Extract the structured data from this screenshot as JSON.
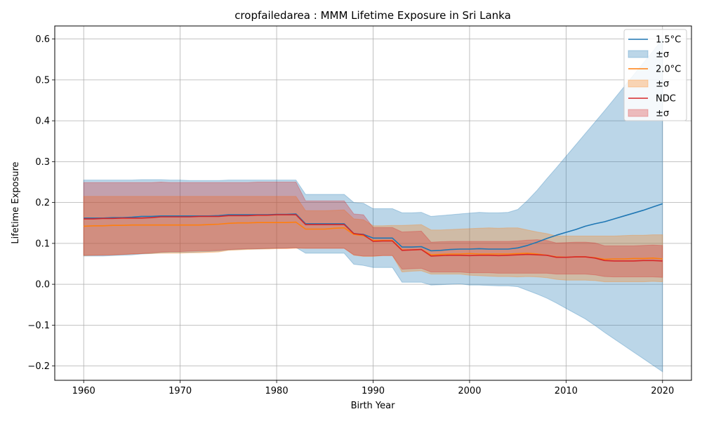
{
  "chart_data": {
    "type": "line",
    "title": "cropfailedarea : MMM Lifetime Exposure in Sri Lanka",
    "xlabel": "Birth Year",
    "ylabel": "Lifetime Exposure",
    "xlim": [
      1957,
      2023
    ],
    "ylim": [
      -0.235,
      0.632
    ],
    "xticks": [
      1960,
      1970,
      1980,
      1990,
      2000,
      2010,
      2020
    ],
    "xtick_labels": [
      "1960",
      "1970",
      "1980",
      "1990",
      "2000",
      "2010",
      "2020"
    ],
    "yticks": [
      -0.2,
      -0.1,
      0.0,
      0.1,
      0.2,
      0.3,
      0.4,
      0.5,
      0.6
    ],
    "ytick_labels": [
      "−0.2",
      "−0.1",
      "0.0",
      "0.1",
      "0.2",
      "0.3",
      "0.4",
      "0.5",
      "0.6"
    ],
    "grid": true,
    "legend_position": "top-right",
    "x": [
      1960,
      1961,
      1962,
      1963,
      1964,
      1965,
      1966,
      1967,
      1968,
      1969,
      1970,
      1971,
      1972,
      1973,
      1974,
      1975,
      1976,
      1977,
      1978,
      1979,
      1980,
      1981,
      1982,
      1983,
      1984,
      1985,
      1986,
      1987,
      1988,
      1989,
      1990,
      1991,
      1992,
      1993,
      1994,
      1995,
      1996,
      1997,
      1998,
      1999,
      2000,
      2001,
      2002,
      2003,
      2004,
      2005,
      2006,
      2007,
      2008,
      2009,
      2010,
      2011,
      2012,
      2013,
      2014,
      2015,
      2016,
      2017,
      2018,
      2019,
      2020
    ],
    "series": [
      {
        "name": "1.5°C",
        "band_label": "±σ",
        "color": "#1f77b4",
        "mean": [
          0.162,
          0.162,
          0.162,
          0.163,
          0.163,
          0.164,
          0.166,
          0.166,
          0.167,
          0.167,
          0.167,
          0.167,
          0.167,
          0.167,
          0.168,
          0.17,
          0.17,
          0.17,
          0.17,
          0.17,
          0.171,
          0.171,
          0.172,
          0.148,
          0.148,
          0.148,
          0.148,
          0.148,
          0.124,
          0.122,
          0.113,
          0.113,
          0.113,
          0.091,
          0.091,
          0.092,
          0.082,
          0.083,
          0.085,
          0.086,
          0.086,
          0.087,
          0.086,
          0.086,
          0.086,
          0.089,
          0.095,
          0.103,
          0.112,
          0.12,
          0.127,
          0.134,
          0.142,
          0.148,
          0.153,
          0.16,
          0.167,
          0.174,
          0.181,
          0.189,
          0.197
        ],
        "upper": [
          0.255,
          0.255,
          0.255,
          0.255,
          0.255,
          0.255,
          0.256,
          0.256,
          0.256,
          0.255,
          0.255,
          0.254,
          0.254,
          0.254,
          0.254,
          0.255,
          0.255,
          0.255,
          0.255,
          0.255,
          0.255,
          0.255,
          0.255,
          0.22,
          0.22,
          0.22,
          0.22,
          0.22,
          0.2,
          0.198,
          0.185,
          0.185,
          0.185,
          0.175,
          0.175,
          0.176,
          0.166,
          0.168,
          0.17,
          0.172,
          0.174,
          0.176,
          0.175,
          0.175,
          0.176,
          0.183,
          0.205,
          0.23,
          0.258,
          0.285,
          0.313,
          0.341,
          0.369,
          0.397,
          0.425,
          0.454,
          0.483,
          0.512,
          0.541,
          0.57,
          0.6
        ],
        "lower": [
          0.069,
          0.069,
          0.069,
          0.07,
          0.071,
          0.072,
          0.074,
          0.075,
          0.077,
          0.078,
          0.078,
          0.078,
          0.079,
          0.08,
          0.081,
          0.084,
          0.085,
          0.086,
          0.086,
          0.087,
          0.088,
          0.089,
          0.09,
          0.076,
          0.076,
          0.076,
          0.076,
          0.076,
          0.049,
          0.046,
          0.041,
          0.041,
          0.041,
          0.005,
          0.005,
          0.005,
          -0.002,
          -0.001,
          0.0,
          0.001,
          -0.002,
          -0.002,
          -0.003,
          -0.004,
          -0.004,
          -0.006,
          -0.015,
          -0.024,
          -0.034,
          -0.046,
          -0.059,
          -0.072,
          -0.085,
          -0.101,
          -0.118,
          -0.134,
          -0.15,
          -0.166,
          -0.182,
          -0.198,
          -0.214
        ]
      },
      {
        "name": "2.0°C",
        "band_label": "±σ",
        "color": "#ff7f0e",
        "mean": [
          0.142,
          0.143,
          0.143,
          0.144,
          0.144,
          0.145,
          0.145,
          0.145,
          0.145,
          0.145,
          0.145,
          0.145,
          0.145,
          0.146,
          0.147,
          0.149,
          0.15,
          0.15,
          0.151,
          0.151,
          0.151,
          0.151,
          0.152,
          0.135,
          0.135,
          0.135,
          0.137,
          0.138,
          0.122,
          0.119,
          0.107,
          0.107,
          0.107,
          0.084,
          0.084,
          0.085,
          0.072,
          0.073,
          0.074,
          0.074,
          0.075,
          0.074,
          0.074,
          0.074,
          0.074,
          0.075,
          0.076,
          0.074,
          0.071,
          0.067,
          0.066,
          0.067,
          0.067,
          0.065,
          0.061,
          0.062,
          0.062,
          0.063,
          0.063,
          0.064,
          0.062
        ],
        "upper": [
          0.215,
          0.215,
          0.215,
          0.215,
          0.215,
          0.215,
          0.215,
          0.215,
          0.215,
          0.215,
          0.215,
          0.215,
          0.215,
          0.215,
          0.215,
          0.215,
          0.215,
          0.215,
          0.215,
          0.215,
          0.215,
          0.215,
          0.215,
          0.18,
          0.18,
          0.18,
          0.181,
          0.182,
          0.16,
          0.158,
          0.143,
          0.143,
          0.144,
          0.144,
          0.145,
          0.146,
          0.133,
          0.133,
          0.134,
          0.135,
          0.136,
          0.137,
          0.138,
          0.137,
          0.138,
          0.138,
          0.133,
          0.128,
          0.124,
          0.118,
          0.118,
          0.118,
          0.118,
          0.118,
          0.118,
          0.118,
          0.119,
          0.12,
          0.12,
          0.121,
          0.121
        ],
        "lower": [
          0.07,
          0.071,
          0.072,
          0.072,
          0.073,
          0.074,
          0.075,
          0.075,
          0.076,
          0.076,
          0.076,
          0.077,
          0.077,
          0.078,
          0.079,
          0.083,
          0.084,
          0.085,
          0.086,
          0.086,
          0.087,
          0.087,
          0.088,
          0.088,
          0.088,
          0.088,
          0.088,
          0.088,
          0.071,
          0.068,
          0.068,
          0.07,
          0.07,
          0.03,
          0.032,
          0.033,
          0.025,
          0.025,
          0.025,
          0.025,
          0.022,
          0.021,
          0.02,
          0.019,
          0.019,
          0.018,
          0.019,
          0.018,
          0.016,
          0.012,
          0.01,
          0.01,
          0.01,
          0.009,
          0.006,
          0.006,
          0.006,
          0.006,
          0.006,
          0.007,
          0.006
        ]
      },
      {
        "name": "NDC",
        "band_label": "±σ",
        "color": "#d62728",
        "mean": [
          0.16,
          0.16,
          0.161,
          0.161,
          0.162,
          0.162,
          0.162,
          0.163,
          0.165,
          0.165,
          0.165,
          0.165,
          0.166,
          0.166,
          0.166,
          0.168,
          0.168,
          0.168,
          0.169,
          0.169,
          0.17,
          0.17,
          0.17,
          0.146,
          0.146,
          0.146,
          0.146,
          0.146,
          0.124,
          0.121,
          0.105,
          0.106,
          0.106,
          0.083,
          0.084,
          0.085,
          0.069,
          0.07,
          0.071,
          0.071,
          0.07,
          0.071,
          0.071,
          0.07,
          0.071,
          0.072,
          0.073,
          0.072,
          0.071,
          0.066,
          0.066,
          0.067,
          0.067,
          0.064,
          0.058,
          0.057,
          0.057,
          0.057,
          0.058,
          0.058,
          0.057
        ],
        "upper": [
          0.249,
          0.249,
          0.249,
          0.249,
          0.249,
          0.249,
          0.249,
          0.249,
          0.25,
          0.249,
          0.249,
          0.249,
          0.249,
          0.249,
          0.249,
          0.249,
          0.249,
          0.249,
          0.25,
          0.25,
          0.25,
          0.25,
          0.25,
          0.204,
          0.204,
          0.204,
          0.204,
          0.204,
          0.172,
          0.17,
          0.139,
          0.139,
          0.139,
          0.128,
          0.129,
          0.13,
          0.103,
          0.104,
          0.105,
          0.105,
          0.105,
          0.105,
          0.105,
          0.105,
          0.105,
          0.106,
          0.108,
          0.109,
          0.107,
          0.101,
          0.102,
          0.103,
          0.103,
          0.101,
          0.094,
          0.094,
          0.094,
          0.094,
          0.095,
          0.096,
          0.095
        ],
        "lower": [
          0.071,
          0.071,
          0.071,
          0.072,
          0.073,
          0.074,
          0.075,
          0.077,
          0.079,
          0.08,
          0.08,
          0.081,
          0.082,
          0.082,
          0.083,
          0.085,
          0.086,
          0.087,
          0.087,
          0.088,
          0.088,
          0.088,
          0.089,
          0.088,
          0.088,
          0.088,
          0.088,
          0.088,
          0.072,
          0.069,
          0.069,
          0.07,
          0.07,
          0.037,
          0.038,
          0.039,
          0.03,
          0.03,
          0.03,
          0.03,
          0.028,
          0.028,
          0.028,
          0.027,
          0.027,
          0.027,
          0.027,
          0.027,
          0.027,
          0.025,
          0.025,
          0.025,
          0.025,
          0.023,
          0.019,
          0.018,
          0.018,
          0.018,
          0.018,
          0.018,
          0.017
        ]
      }
    ]
  }
}
